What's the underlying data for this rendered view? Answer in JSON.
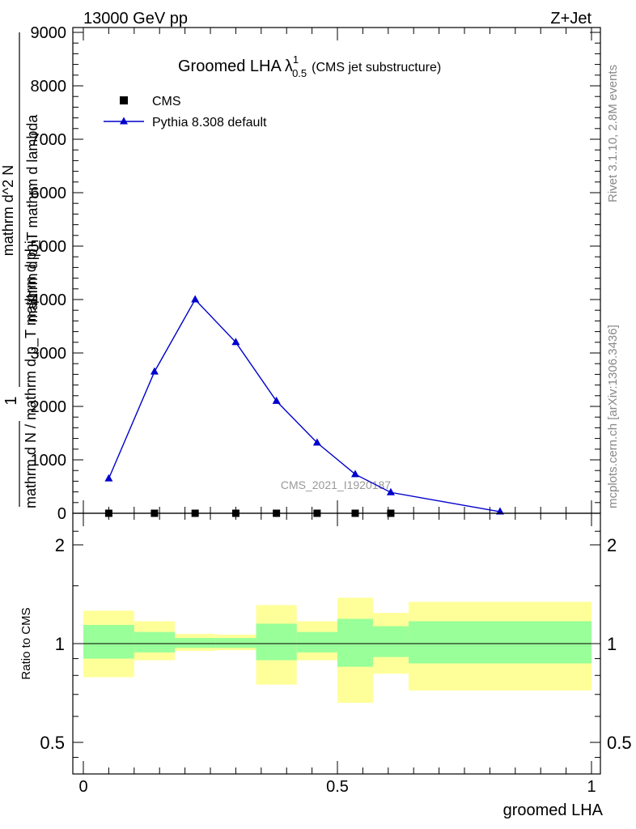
{
  "header": {
    "energy": "13000 GeV pp",
    "process": "Z+Jet"
  },
  "side_labels": {
    "rivet": "Rivet 3.1.10,  2.8M events",
    "mcplots": "mcplots.cern.ch [arXiv:1306.3436]"
  },
  "colors": {
    "cms_marker": "#000000",
    "pythia_line": "#0000cc",
    "band_inner": "#99ff99",
    "band_outer": "#ffff99"
  },
  "chart_data": [
    {
      "type": "line",
      "title": "Groomed LHA",
      "title_symbol": "λ",
      "title_sup": "1",
      "title_sub": "0.5",
      "title_note": "(CMS jet substructure)",
      "watermark": "CMS_2021_I1920187",
      "ylabel_numerator": "1",
      "ylabel_denominator": "mathrm d N / mathrm d p_T mathrm d phi",
      "ylabel_top": "mathrm d^2 N",
      "ylabel_top2": "mathrm d p_T mathrm d lambda",
      "xlim": [
        0,
        1
      ],
      "ylim": [
        0,
        9000
      ],
      "yticks": [
        0,
        1000,
        2000,
        3000,
        4000,
        5000,
        6000,
        7000,
        8000,
        9000
      ],
      "ytick_labels": [
        "0",
        "1000",
        "2000",
        "3000",
        "4000",
        "5000",
        "6000",
        "7000",
        "8000",
        "9000"
      ],
      "legend_position": "top-left",
      "series": [
        {
          "name": "CMS",
          "marker": "square",
          "x": [
            0.05,
            0.14,
            0.22,
            0.3,
            0.38,
            0.46,
            0.535,
            0.605
          ],
          "y": [
            0,
            0,
            0,
            0,
            0,
            0,
            0,
            0
          ]
        },
        {
          "name": "Pythia 8.308 default",
          "marker": "triangle",
          "x": [
            0.05,
            0.14,
            0.22,
            0.3,
            0.38,
            0.46,
            0.535,
            0.605,
            0.82
          ],
          "y": [
            650,
            2650,
            4000,
            3200,
            2100,
            1320,
            730,
            390,
            30
          ]
        }
      ]
    },
    {
      "type": "area",
      "ylabel": "Ratio to CMS",
      "xlabel": "groomed LHA",
      "yscale": "log",
      "xlim": [
        0,
        1
      ],
      "ylim": [
        0.4,
        2.4
      ],
      "yticks": [
        0.5,
        1,
        2
      ],
      "ytick_labels": [
        "0.5",
        "1",
        "2"
      ],
      "xticks": [
        0,
        0.5,
        1
      ],
      "xtick_labels": [
        "0",
        "0.5",
        "1"
      ],
      "reference_line": 1,
      "bins": [
        {
          "xlo": 0.0,
          "xhi": 0.1,
          "inner": [
            0.9,
            1.14
          ],
          "outer": [
            0.79,
            1.26
          ]
        },
        {
          "xlo": 0.1,
          "xhi": 0.18,
          "inner": [
            0.94,
            1.085
          ],
          "outer": [
            0.89,
            1.17
          ]
        },
        {
          "xlo": 0.18,
          "xhi": 0.26,
          "inner": [
            0.97,
            1.04
          ],
          "outer": [
            0.95,
            1.07
          ]
        },
        {
          "xlo": 0.26,
          "xhi": 0.34,
          "inner": [
            0.97,
            1.04
          ],
          "outer": [
            0.955,
            1.065
          ]
        },
        {
          "xlo": 0.34,
          "xhi": 0.42,
          "inner": [
            0.89,
            1.15
          ],
          "outer": [
            0.75,
            1.31
          ]
        },
        {
          "xlo": 0.42,
          "xhi": 0.5,
          "inner": [
            0.94,
            1.085
          ],
          "outer": [
            0.89,
            1.17
          ]
        },
        {
          "xlo": 0.5,
          "xhi": 0.57,
          "inner": [
            0.85,
            1.19
          ],
          "outer": [
            0.66,
            1.38
          ]
        },
        {
          "xlo": 0.57,
          "xhi": 0.64,
          "inner": [
            0.91,
            1.13
          ],
          "outer": [
            0.81,
            1.24
          ]
        },
        {
          "xlo": 0.64,
          "xhi": 1.0,
          "inner": [
            0.87,
            1.17
          ],
          "outer": [
            0.72,
            1.34
          ]
        }
      ]
    }
  ]
}
